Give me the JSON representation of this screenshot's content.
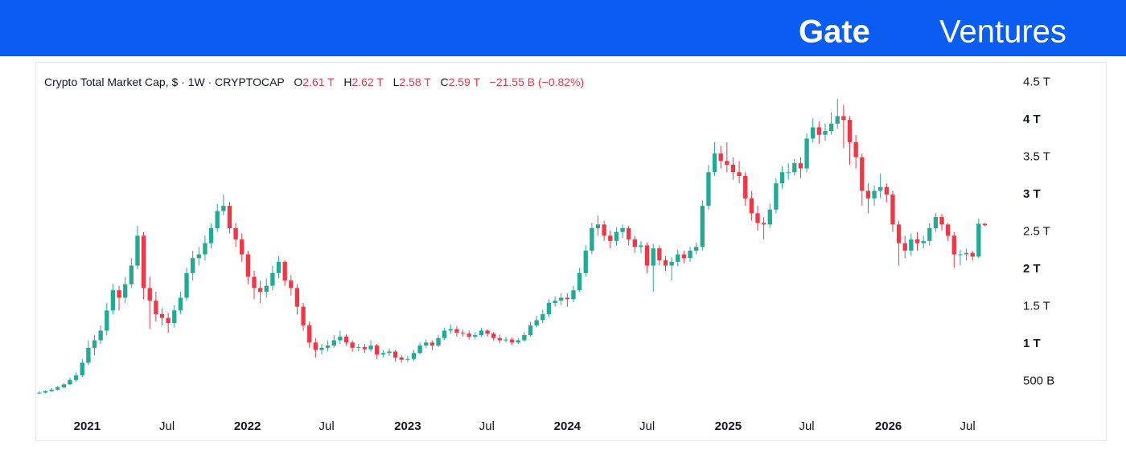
{
  "logo": {
    "brand": "Gate",
    "name": "Ventures"
  },
  "chart_data": {
    "type": "candlestick",
    "title": "Crypto Total Market Cap, $ · 1W · CRYPTOCAP",
    "legend": [
      {
        "key": "O",
        "value": "2.61 T"
      },
      {
        "key": "H",
        "value": "2.62 T"
      },
      {
        "key": "L",
        "value": "2.58 T"
      },
      {
        "key": "C",
        "value": "2.59 T"
      }
    ],
    "change": "−21.55 B (−0.82%)",
    "up_color": "#22ab94",
    "down_color": "#f23645",
    "open": [
      0.34,
      0.35,
      0.37,
      0.39,
      0.42,
      0.46,
      0.52,
      0.58,
      0.75,
      0.95,
      1.05,
      1.18,
      1.45,
      1.72,
      1.62,
      1.8,
      2.05,
      2.45,
      1.75,
      1.58,
      1.4,
      1.35,
      1.28,
      1.45,
      1.62,
      1.95,
      2.15,
      2.2,
      2.35,
      2.55,
      2.78,
      2.85,
      2.55,
      2.4,
      2.2,
      1.9,
      1.75,
      1.7,
      1.78,
      1.95,
      2.1,
      1.85,
      1.75,
      1.5,
      1.25,
      1.02,
      0.92,
      0.95,
      0.98,
      1.05,
      1.1,
      1.02,
      0.95,
      0.96,
      0.93,
      0.98,
      0.86,
      0.88,
      0.9,
      0.82,
      0.79,
      0.8,
      0.88,
      0.98,
      1.02,
      0.98,
      1.08,
      1.18,
      1.2,
      1.15,
      1.14,
      1.1,
      1.12,
      1.18,
      1.14,
      1.08,
      1.05,
      1.06,
      1.02,
      1.05,
      1.12,
      1.25,
      1.32,
      1.4,
      1.55,
      1.58,
      1.62,
      1.6,
      1.72,
      1.95,
      2.25,
      2.55,
      2.6,
      2.45,
      2.38,
      2.5,
      2.55,
      2.4,
      2.3,
      2.32,
      2.05,
      2.28,
      2.12,
      2.05,
      2.1,
      2.2,
      2.15,
      2.25,
      2.3,
      2.85,
      3.3,
      3.55,
      3.45,
      3.4,
      3.3,
      3.25,
      2.95,
      2.75,
      2.62,
      2.6,
      2.8,
      3.15,
      3.3,
      3.3,
      3.42,
      3.35,
      3.75,
      3.9,
      3.8,
      3.85,
      3.95,
      4.05,
      4.0,
      3.7,
      3.5,
      3.05,
      2.95,
      3.05,
      3.1,
      3.0,
      2.6,
      2.35,
      2.25,
      2.4,
      2.35,
      2.38,
      2.55,
      2.7,
      2.6,
      2.45,
      2.2,
      2.2,
      2.22,
      2.17,
      2.61
    ],
    "high": [
      0.37,
      0.38,
      0.41,
      0.44,
      0.48,
      0.55,
      0.62,
      0.8,
      1.05,
      1.12,
      1.25,
      1.55,
      1.8,
      1.78,
      1.9,
      2.15,
      2.58,
      2.5,
      1.9,
      1.7,
      1.48,
      1.42,
      1.52,
      1.7,
      2.02,
      2.25,
      2.3,
      2.45,
      2.62,
      2.88,
      3.0,
      2.9,
      2.62,
      2.48,
      2.25,
      1.98,
      1.85,
      1.88,
      2.05,
      2.18,
      2.12,
      1.92,
      1.8,
      1.55,
      1.3,
      1.08,
      1.0,
      1.05,
      1.12,
      1.18,
      1.13,
      1.05,
      1.0,
      1.0,
      1.05,
      1.0,
      0.92,
      0.94,
      0.92,
      0.85,
      0.84,
      0.92,
      1.02,
      1.06,
      1.05,
      1.12,
      1.22,
      1.26,
      1.24,
      1.19,
      1.18,
      1.16,
      1.22,
      1.2,
      1.16,
      1.12,
      1.1,
      1.09,
      1.08,
      1.16,
      1.3,
      1.38,
      1.46,
      1.6,
      1.64,
      1.68,
      1.68,
      1.78,
      2.02,
      2.32,
      2.62,
      2.72,
      2.65,
      2.52,
      2.56,
      2.6,
      2.58,
      2.45,
      2.38,
      2.36,
      2.34,
      2.32,
      2.18,
      2.16,
      2.26,
      2.25,
      2.3,
      2.36,
      2.92,
      3.4,
      3.7,
      3.65,
      3.7,
      3.5,
      3.45,
      3.3,
      3.05,
      2.85,
      2.7,
      2.88,
      3.22,
      3.38,
      3.42,
      3.48,
      3.5,
      3.82,
      4.02,
      3.98,
      3.95,
      4.1,
      4.28,
      4.2,
      4.05,
      3.8,
      3.55,
      3.15,
      3.12,
      3.28,
      3.15,
      3.05,
      2.65,
      2.45,
      2.48,
      2.5,
      2.45,
      2.62,
      2.75,
      2.74,
      2.62,
      2.5,
      2.26,
      2.28,
      2.25,
      2.68,
      2.62
    ],
    "low": [
      0.33,
      0.34,
      0.36,
      0.38,
      0.41,
      0.45,
      0.5,
      0.56,
      0.72,
      0.85,
      1.0,
      1.12,
      1.4,
      1.45,
      1.55,
      1.75,
      2.0,
      1.6,
      1.2,
      1.3,
      1.25,
      1.15,
      1.22,
      1.4,
      1.58,
      1.85,
      2.05,
      2.12,
      2.28,
      2.5,
      2.72,
      2.48,
      2.3,
      2.1,
      1.8,
      1.6,
      1.55,
      1.62,
      1.72,
      1.88,
      1.78,
      1.65,
      1.4,
      1.18,
      0.95,
      0.82,
      0.86,
      0.9,
      0.95,
      1.0,
      0.98,
      0.9,
      0.9,
      0.88,
      0.9,
      0.8,
      0.82,
      0.84,
      0.76,
      0.75,
      0.76,
      0.78,
      0.86,
      0.95,
      0.92,
      0.96,
      1.05,
      1.14,
      1.1,
      1.1,
      1.06,
      1.07,
      1.1,
      1.1,
      1.04,
      1.01,
      1.02,
      0.99,
      1.0,
      1.03,
      1.1,
      1.22,
      1.28,
      1.36,
      1.5,
      1.52,
      1.5,
      1.56,
      1.7,
      1.9,
      2.2,
      2.45,
      2.38,
      2.28,
      2.32,
      2.42,
      2.32,
      2.22,
      2.22,
      1.95,
      1.7,
      2.05,
      1.98,
      1.85,
      2.04,
      2.08,
      2.1,
      2.2,
      2.25,
      2.8,
      3.25,
      3.35,
      3.3,
      3.2,
      3.15,
      2.85,
      2.65,
      2.52,
      2.4,
      2.55,
      2.75,
      3.08,
      3.2,
      3.25,
      3.22,
      3.3,
      3.7,
      3.68,
      3.72,
      3.8,
      3.88,
      3.62,
      3.4,
      3.35,
      2.85,
      2.75,
      2.85,
      2.95,
      2.9,
      2.5,
      2.05,
      2.15,
      2.18,
      2.25,
      2.28,
      2.32,
      2.5,
      2.52,
      2.38,
      2.02,
      2.05,
      2.12,
      2.12,
      2.15,
      2.58
    ],
    "close": [
      0.35,
      0.37,
      0.39,
      0.42,
      0.46,
      0.52,
      0.58,
      0.75,
      0.95,
      1.05,
      1.18,
      1.45,
      1.72,
      1.62,
      1.8,
      2.05,
      2.45,
      1.75,
      1.58,
      1.4,
      1.35,
      1.28,
      1.45,
      1.62,
      1.95,
      2.15,
      2.2,
      2.35,
      2.55,
      2.78,
      2.85,
      2.55,
      2.4,
      2.2,
      1.9,
      1.75,
      1.7,
      1.78,
      1.95,
      2.1,
      1.85,
      1.75,
      1.5,
      1.25,
      1.02,
      0.92,
      0.95,
      0.98,
      1.05,
      1.1,
      1.02,
      0.95,
      0.96,
      0.93,
      0.98,
      0.86,
      0.88,
      0.9,
      0.82,
      0.79,
      0.8,
      0.88,
      0.98,
      1.02,
      0.98,
      1.08,
      1.18,
      1.2,
      1.15,
      1.14,
      1.1,
      1.12,
      1.18,
      1.14,
      1.08,
      1.05,
      1.06,
      1.02,
      1.05,
      1.12,
      1.25,
      1.32,
      1.4,
      1.55,
      1.58,
      1.62,
      1.6,
      1.72,
      1.95,
      2.25,
      2.55,
      2.6,
      2.45,
      2.38,
      2.5,
      2.55,
      2.4,
      2.3,
      2.32,
      2.05,
      2.28,
      2.12,
      2.05,
      2.1,
      2.2,
      2.15,
      2.25,
      2.3,
      2.85,
      3.3,
      3.55,
      3.45,
      3.4,
      3.3,
      3.25,
      2.95,
      2.75,
      2.62,
      2.6,
      2.8,
      3.15,
      3.3,
      3.3,
      3.42,
      3.35,
      3.75,
      3.9,
      3.8,
      3.85,
      3.95,
      4.05,
      4.0,
      3.7,
      3.5,
      3.05,
      2.95,
      3.05,
      3.1,
      3.0,
      2.6,
      2.35,
      2.25,
      2.4,
      2.35,
      2.38,
      2.55,
      2.7,
      2.6,
      2.45,
      2.2,
      2.2,
      2.22,
      2.17,
      2.61,
      2.59
    ],
    "xlim": [
      -0.5,
      158
    ],
    "xticks": [
      {
        "value": 7.8,
        "label": "2021"
      },
      {
        "value": 20.8,
        "label": "Jul"
      },
      {
        "value": 33.9,
        "label": "2022"
      },
      {
        "value": 46.8,
        "label": "Jul"
      },
      {
        "value": 60,
        "label": "2023"
      },
      {
        "value": 72.9,
        "label": "Jul"
      },
      {
        "value": 86,
        "label": "2024"
      },
      {
        "value": 99,
        "label": "Jul"
      },
      {
        "value": 112.2,
        "label": "2025"
      },
      {
        "value": 125,
        "label": "Jul"
      },
      {
        "value": 138.3,
        "label": "2026"
      },
      {
        "value": 151.2,
        "label": "Jul"
      }
    ],
    "ylim": [
      0.12,
      4.69
    ],
    "yticks": [
      {
        "value": 0.5,
        "label": "500 B"
      },
      {
        "value": 1,
        "label": "1 T"
      },
      {
        "value": 1.5,
        "label": "1.5 T"
      },
      {
        "value": 2,
        "label": "2 T"
      },
      {
        "value": 2.5,
        "label": "2.5 T"
      },
      {
        "value": 3,
        "label": "3 T"
      },
      {
        "value": 3.5,
        "label": "3.5 T"
      },
      {
        "value": 4,
        "label": "4 T"
      },
      {
        "value": 4.5,
        "label": "4.5 T"
      }
    ]
  }
}
